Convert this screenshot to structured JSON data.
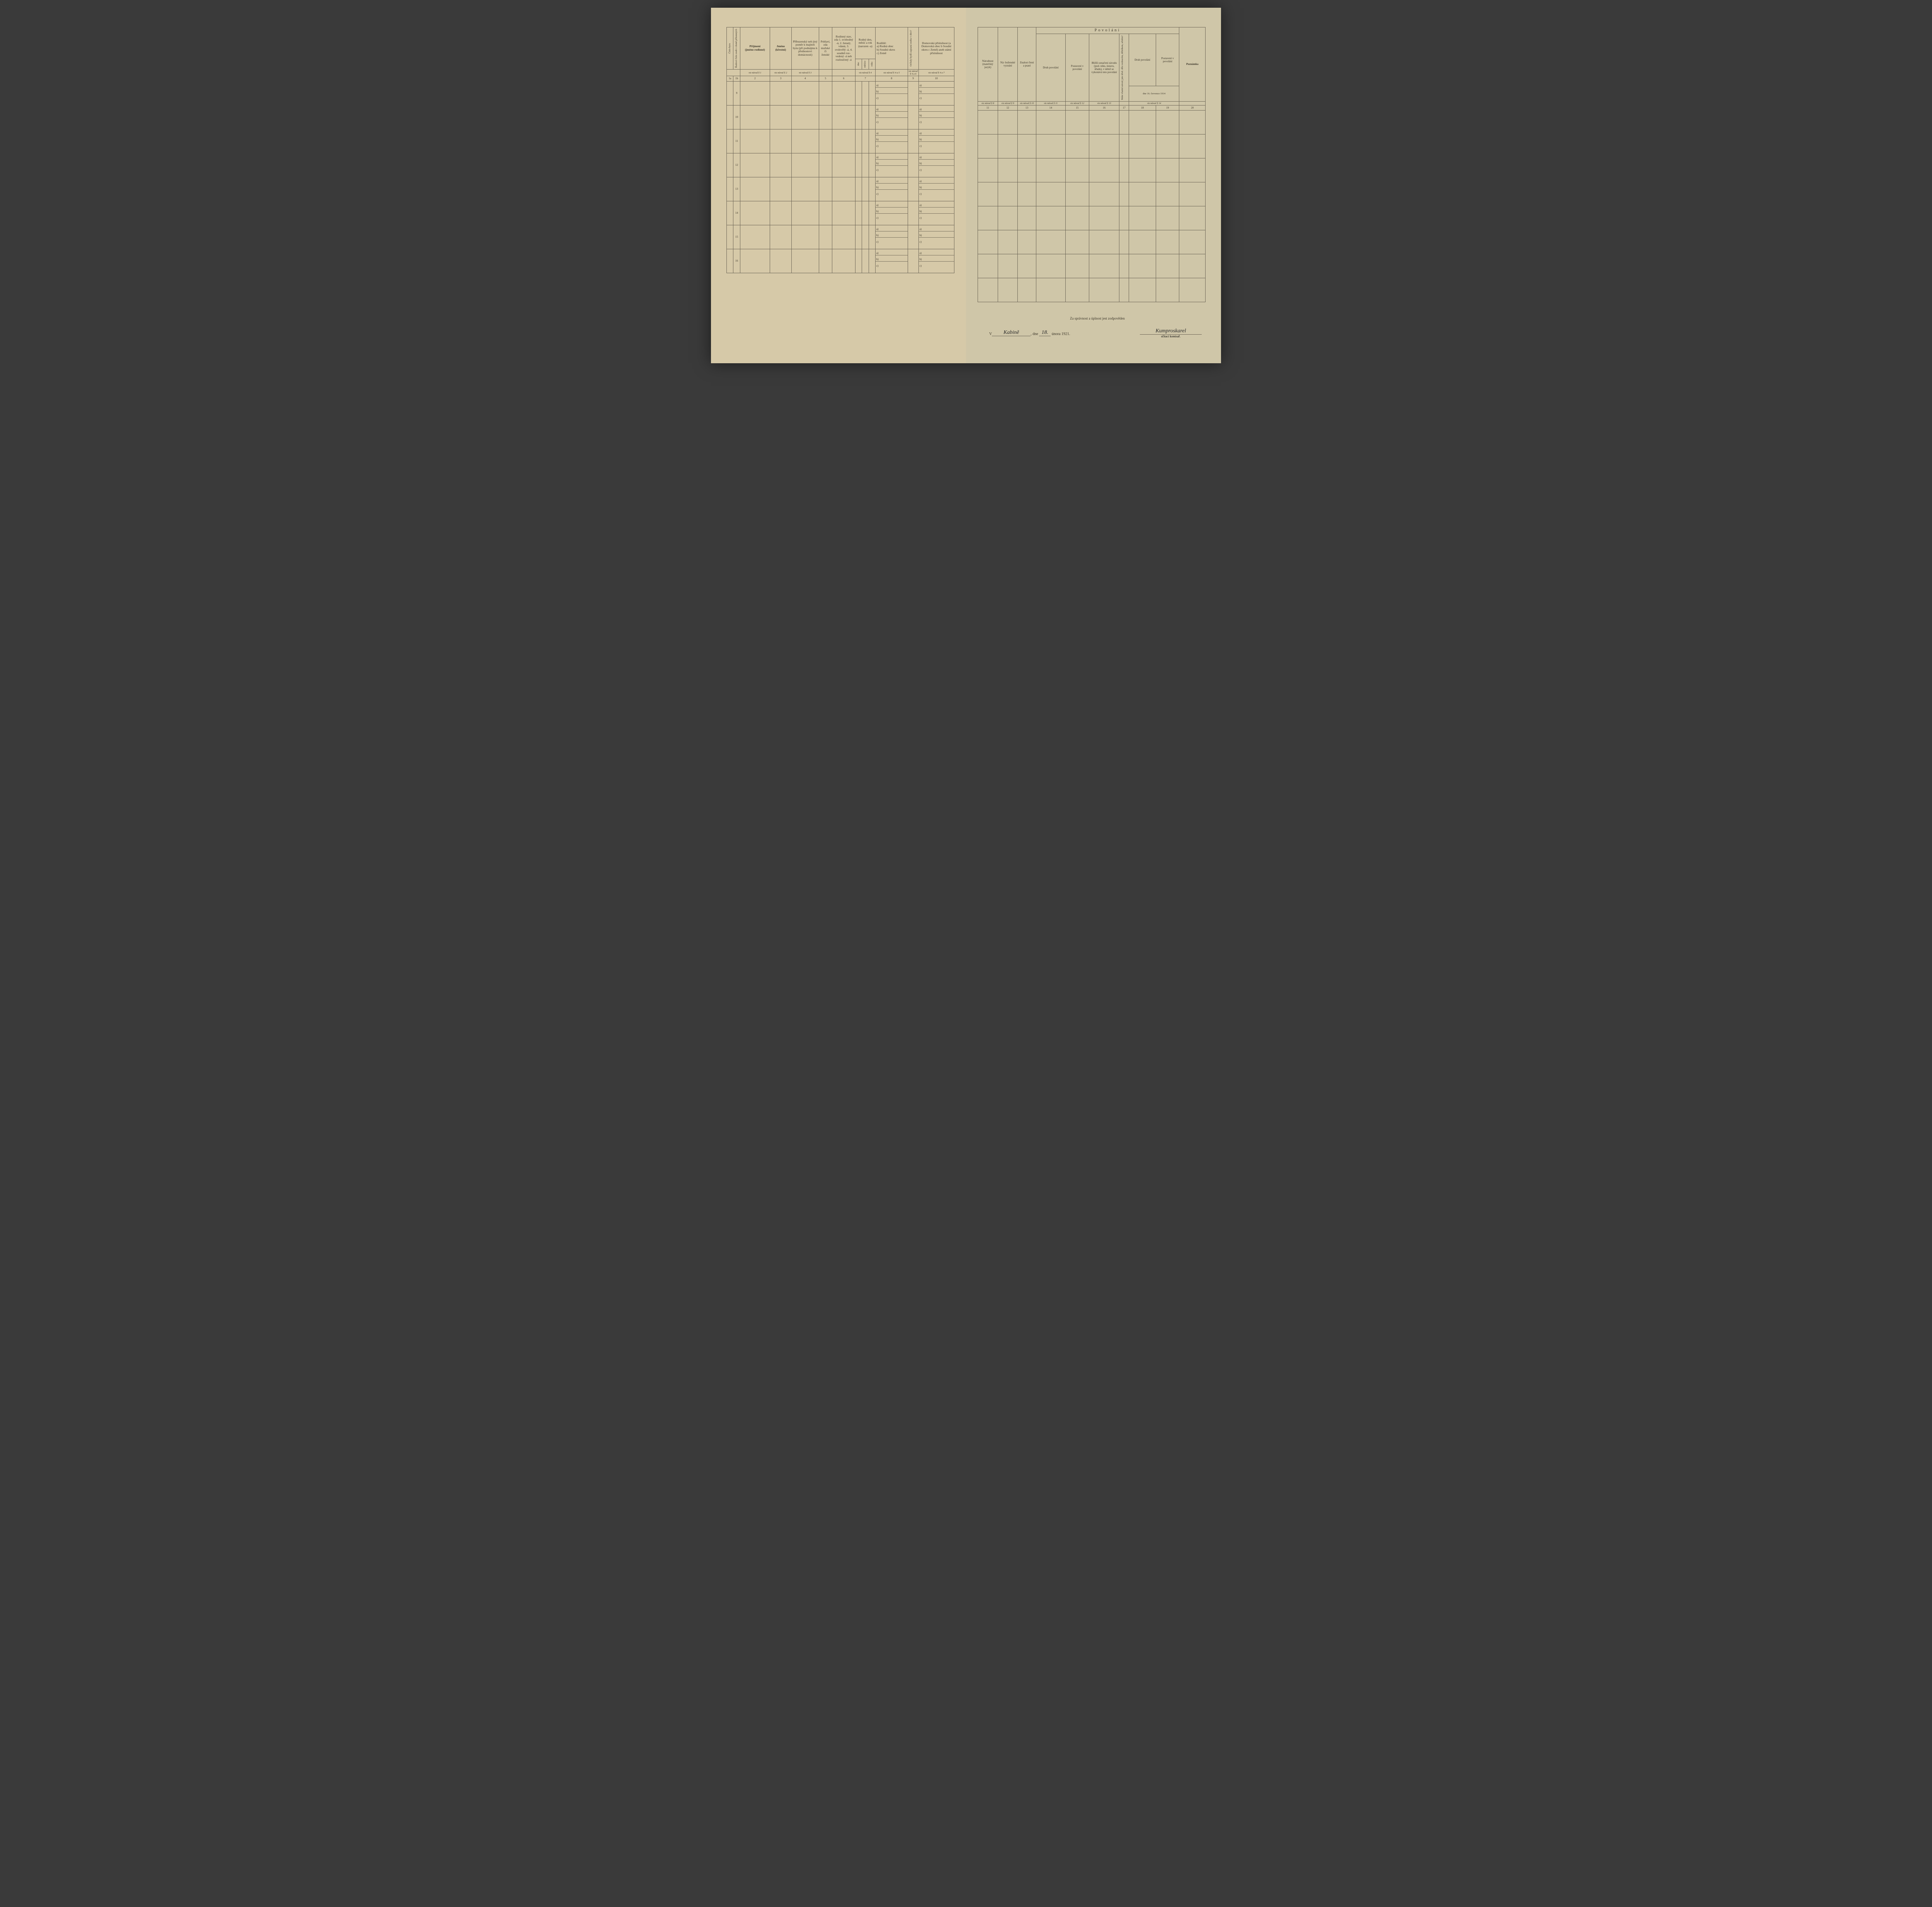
{
  "paper_color_left": "#d6c9a8",
  "paper_color_right": "#cfc6a8",
  "border_color": "#6b6455",
  "text_color": "#3a3428",
  "left": {
    "headers": {
      "c1a": "Číslo bytu",
      "c1b": "Řadové číslo osob v domě přítomných",
      "c2": "Příjmení\n(jméno rodinné)",
      "c3": "Jméno\n(křestní)",
      "c4": "Příbuzenský neb jiný poměr k majiteli bytu (při podnájmu k přednostovi domácnosti)",
      "c5": "Pohlaví, zda mužské či ženské",
      "c6": "Rodinný stav, zda 1. svobodný -á, 2. ženatý, vdaná, 3. ovdovělý -á, 4. soudně roz- vedený -á neb rozloučený -á",
      "c7": "Rodný den, měsíc a rok (narozen -a)",
      "c7a": "dne",
      "c7b": "měsíce",
      "c7c": "roku",
      "c8": "Rodiště:\na) Rodná obec\nb) Soudní okres\nc) Země",
      "c9": "Od kdy bydlí zapsaná osoba v obci?",
      "c10": "Domovská příslušnost (a Domovská obec b Soudní okres c Země) aneb státní příslušnost"
    },
    "navod": {
      "c2": "viz návod § 1",
      "c3": "viz návod § 2",
      "c4": "viz návod § 3",
      "c7": "viz návod § 4",
      "c8": "viz návod § 4 a 5",
      "c9": "viz návod § 4 a 6",
      "c10": "viz návod § 4 a 7"
    },
    "colnums": [
      "1a",
      "1b",
      "2",
      "3",
      "4",
      "5",
      "6",
      "7",
      "8",
      "9",
      "10"
    ],
    "row_numbers": [
      9,
      10,
      11,
      12,
      13,
      14,
      15,
      16
    ],
    "sub_labels": [
      "a)",
      "b)",
      "c)"
    ]
  },
  "right": {
    "title": "Povolání",
    "headers": {
      "c11": "Národnost (mateřský jazyk)",
      "c12": "Ná- boženské vyznání",
      "c13": "Znalost čtení a psaní",
      "c14": "Druh povolání",
      "c15": "Postavení v povolání",
      "c16": "Bližší označení závodu (pod- niku, ústavu, úřadu), v němž se vykonává toto povolání",
      "c17": "Máte vlastní závod, jste úřed. dílo vedoucím, dělníkem, učněm?",
      "c18": "Druh povolání",
      "c19": "Postavení v povolání",
      "c20": "Poznámka",
      "date_line": "dne 16. července 1914"
    },
    "navod": {
      "c11": "viz návod § 8",
      "c12": "viz návod § 9",
      "c13": "viz návod § 10",
      "c14": "viz návod § 11",
      "c15": "viz návod § 12",
      "c16": "viz návod § 13",
      "c18_19": "viz návod § 14"
    },
    "colnums": [
      "11",
      "12",
      "13",
      "14",
      "15",
      "16",
      "17",
      "18",
      "19",
      "20"
    ],
    "row_count": 8
  },
  "footer": {
    "responsibility": "Za správnost a úplnost jest zodpověden",
    "v_label": "V",
    "place_sig": "Kabině",
    "dne_label": ", dne",
    "day_sig": "18.",
    "month_year": "února 1921.",
    "commissar_sig": "Kumproskarel",
    "commissar_label": "sčítací komisař."
  }
}
